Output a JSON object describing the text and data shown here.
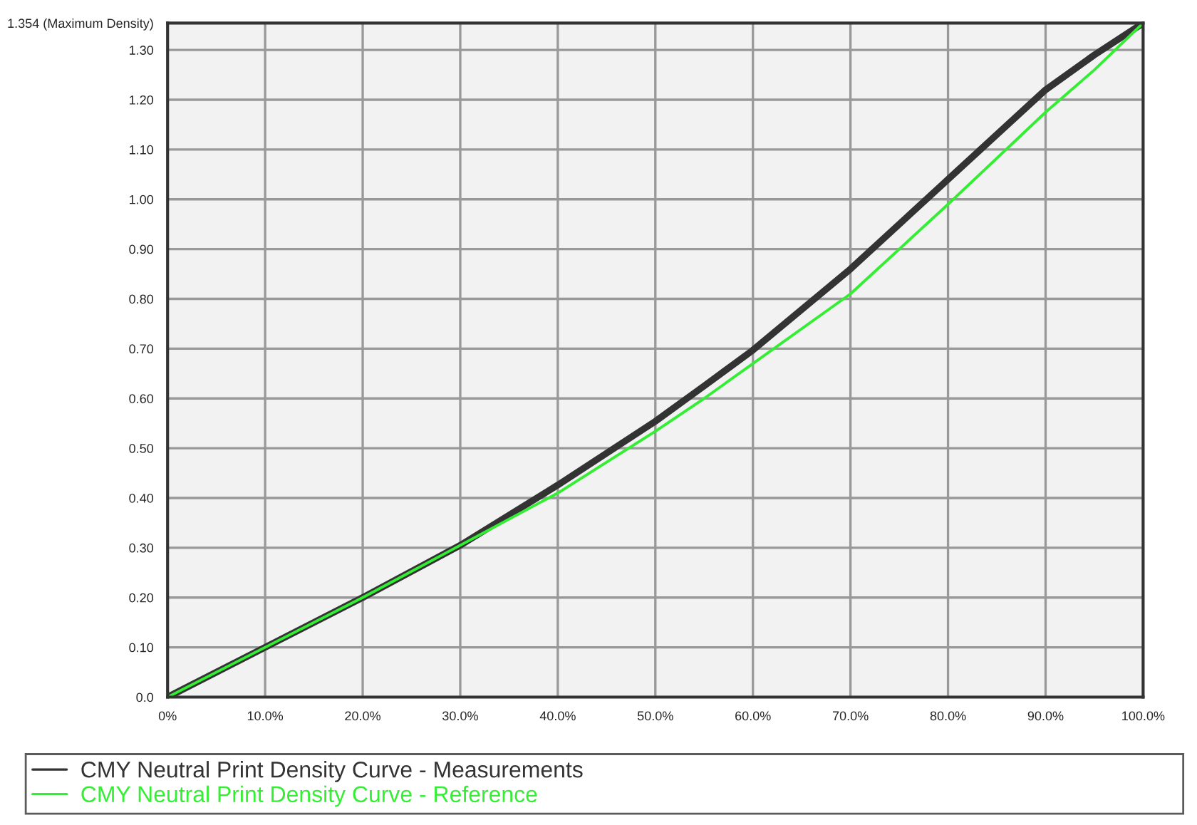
{
  "chart_data": {
    "type": "line",
    "x": [
      0,
      10,
      20,
      30,
      40,
      50,
      55,
      60,
      70,
      80,
      90,
      95,
      100
    ],
    "series": [
      {
        "name": "CMY Neutral Print Density Curve - Measurements",
        "color": "#333333",
        "values": [
          0,
          0.1,
          0.2,
          0.305,
          0.426,
          0.554,
          0.625,
          0.697,
          0.86,
          1.04,
          1.22,
          1.29,
          1.354
        ]
      },
      {
        "name": "CMY Neutral Print Density Curve - Reference",
        "color": "#33ee33",
        "values": [
          0,
          0.1,
          0.2,
          0.305,
          0.41,
          0.534,
          0.6,
          0.67,
          0.81,
          0.99,
          1.175,
          1.26,
          1.354
        ]
      }
    ],
    "xlim": [
      0,
      100
    ],
    "xticks": [
      {
        "value": 0,
        "label": "0%"
      },
      {
        "value": 10,
        "label": "10.0%"
      },
      {
        "value": 20,
        "label": "20.0%"
      },
      {
        "value": 30,
        "label": "30.0%"
      },
      {
        "value": 40,
        "label": "40.0%"
      },
      {
        "value": 50,
        "label": "50.0%"
      },
      {
        "value": 60,
        "label": "60.0%"
      },
      {
        "value": 70,
        "label": "70.0%"
      },
      {
        "value": 80,
        "label": "80.0%"
      },
      {
        "value": 90,
        "label": "90.0%"
      },
      {
        "value": 100,
        "label": "100.0%"
      }
    ],
    "ylim": [
      0,
      1.354
    ],
    "yticks": [
      {
        "value": 0,
        "label": "0.0"
      },
      {
        "value": 0.1,
        "label": "0.10"
      },
      {
        "value": 0.2,
        "label": "0.20"
      },
      {
        "value": 0.3,
        "label": "0.30"
      },
      {
        "value": 0.4,
        "label": "0.40"
      },
      {
        "value": 0.5,
        "label": "0.50"
      },
      {
        "value": 0.6,
        "label": "0.60"
      },
      {
        "value": 0.7,
        "label": "0.70"
      },
      {
        "value": 0.8,
        "label": "0.80"
      },
      {
        "value": 0.9,
        "label": "0.90"
      },
      {
        "value": 1.0,
        "label": "1.00"
      },
      {
        "value": 1.1,
        "label": "1.10"
      },
      {
        "value": 1.2,
        "label": "1.20"
      },
      {
        "value": 1.3,
        "label": "1.30"
      },
      {
        "value": 1.354,
        "label": "1.354 (Maximum Density)"
      }
    ],
    "grid": true,
    "legend": "bottom",
    "marker": "none",
    "line_style": "solid"
  }
}
